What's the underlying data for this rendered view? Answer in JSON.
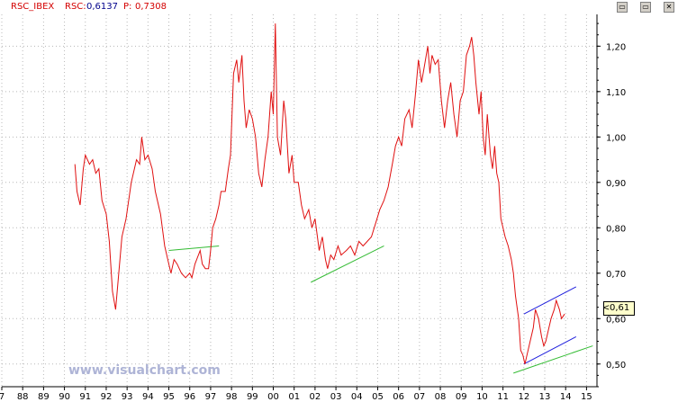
{
  "header": {
    "title": "RSC_IBEX",
    "rsc_label": "RSC:",
    "rsc_value": "0,6137",
    "p_label": "P:",
    "p_value": "0,7308",
    "colors": {
      "title": "#d40000",
      "value": "#00008b"
    }
  },
  "window_buttons": {
    "restore": "▭",
    "maximize": "▭",
    "close": "✕"
  },
  "current_value": {
    "marker": "<",
    "text": "0,61"
  },
  "watermark": "www.visualchart.com",
  "chart_data": {
    "type": "line",
    "title": "RSC_IBEX",
    "xlabel": "",
    "ylabel": "",
    "x_tick_labels": [
      "7",
      "88",
      "89",
      "90",
      "91",
      "92",
      "93",
      "94",
      "95",
      "96",
      "97",
      "98",
      "99",
      "00",
      "01",
      "02",
      "03",
      "04",
      "05",
      "06",
      "07",
      "08",
      "09",
      "10",
      "11",
      "12",
      "13",
      "14",
      "15"
    ],
    "x_tick_years": [
      1987,
      1988,
      1989,
      1990,
      1991,
      1992,
      1993,
      1994,
      1995,
      1996,
      1997,
      1998,
      1999,
      2000,
      2001,
      2002,
      2003,
      2004,
      2005,
      2006,
      2007,
      2008,
      2009,
      2010,
      2011,
      2012,
      2013,
      2014,
      2015
    ],
    "y_ticks": [
      0.5,
      0.6,
      0.7,
      0.8,
      0.9,
      1.0,
      1.1,
      1.2
    ],
    "y_tick_labels": [
      "0,50",
      "0,60",
      "0,70",
      "0,80",
      "0,90",
      "1,00",
      "1,10",
      "1,20"
    ],
    "xlim": [
      1987,
      2015.5
    ],
    "ylim": [
      0.45,
      1.27
    ],
    "grid": true,
    "series": [
      {
        "color": "#e01010",
        "points": [
          [
            1990.5,
            0.94
          ],
          [
            1990.6,
            0.88
          ],
          [
            1990.75,
            0.85
          ],
          [
            1990.9,
            0.93
          ],
          [
            1991.0,
            0.96
          ],
          [
            1991.2,
            0.94
          ],
          [
            1991.35,
            0.95
          ],
          [
            1991.5,
            0.92
          ],
          [
            1991.65,
            0.93
          ],
          [
            1991.8,
            0.86
          ],
          [
            1992.0,
            0.83
          ],
          [
            1992.15,
            0.77
          ],
          [
            1992.3,
            0.66
          ],
          [
            1992.45,
            0.62
          ],
          [
            1992.6,
            0.7
          ],
          [
            1992.75,
            0.78
          ],
          [
            1992.95,
            0.82
          ],
          [
            1993.2,
            0.9
          ],
          [
            1993.45,
            0.95
          ],
          [
            1993.6,
            0.94
          ],
          [
            1993.7,
            1.0
          ],
          [
            1993.85,
            0.95
          ],
          [
            1994.0,
            0.96
          ],
          [
            1994.2,
            0.93
          ],
          [
            1994.35,
            0.88
          ],
          [
            1994.6,
            0.83
          ],
          [
            1994.8,
            0.76
          ],
          [
            1995.0,
            0.72
          ],
          [
            1995.1,
            0.7
          ],
          [
            1995.25,
            0.73
          ],
          [
            1995.4,
            0.72
          ],
          [
            1995.6,
            0.7
          ],
          [
            1995.8,
            0.69
          ],
          [
            1996.0,
            0.7
          ],
          [
            1996.1,
            0.69
          ],
          [
            1996.25,
            0.72
          ],
          [
            1996.5,
            0.75
          ],
          [
            1996.6,
            0.72
          ],
          [
            1996.75,
            0.71
          ],
          [
            1996.9,
            0.71
          ],
          [
            1997.0,
            0.75
          ],
          [
            1997.1,
            0.8
          ],
          [
            1997.25,
            0.82
          ],
          [
            1997.4,
            0.85
          ],
          [
            1997.5,
            0.88
          ],
          [
            1997.7,
            0.88
          ],
          [
            1997.85,
            0.93
          ],
          [
            1997.95,
            0.96
          ],
          [
            1998.1,
            1.14
          ],
          [
            1998.25,
            1.17
          ],
          [
            1998.35,
            1.12
          ],
          [
            1998.5,
            1.18
          ],
          [
            1998.6,
            1.08
          ],
          [
            1998.7,
            1.02
          ],
          [
            1998.85,
            1.06
          ],
          [
            1999.0,
            1.04
          ],
          [
            1999.15,
            1.0
          ],
          [
            1999.3,
            0.92
          ],
          [
            1999.45,
            0.89
          ],
          [
            1999.6,
            0.95
          ],
          [
            1999.75,
            1.0
          ],
          [
            1999.9,
            1.1
          ],
          [
            2000.0,
            1.05
          ],
          [
            2000.1,
            1.25
          ],
          [
            2000.2,
            1.0
          ],
          [
            2000.35,
            0.96
          ],
          [
            2000.5,
            1.08
          ],
          [
            2000.6,
            1.04
          ],
          [
            2000.75,
            0.92
          ],
          [
            2000.9,
            0.96
          ],
          [
            2001.0,
            0.9
          ],
          [
            2001.2,
            0.9
          ],
          [
            2001.35,
            0.85
          ],
          [
            2001.5,
            0.82
          ],
          [
            2001.7,
            0.84
          ],
          [
            2001.85,
            0.8
          ],
          [
            2002.0,
            0.82
          ],
          [
            2002.2,
            0.75
          ],
          [
            2002.35,
            0.78
          ],
          [
            2002.5,
            0.73
          ],
          [
            2002.6,
            0.71
          ],
          [
            2002.75,
            0.74
          ],
          [
            2002.9,
            0.73
          ],
          [
            2003.1,
            0.76
          ],
          [
            2003.25,
            0.74
          ],
          [
            2003.5,
            0.75
          ],
          [
            2003.7,
            0.76
          ],
          [
            2003.9,
            0.74
          ],
          [
            2004.1,
            0.77
          ],
          [
            2004.3,
            0.76
          ],
          [
            2004.5,
            0.77
          ],
          [
            2004.7,
            0.78
          ],
          [
            2004.9,
            0.81
          ],
          [
            2005.1,
            0.84
          ],
          [
            2005.3,
            0.86
          ],
          [
            2005.5,
            0.89
          ],
          [
            2005.7,
            0.94
          ],
          [
            2005.85,
            0.98
          ],
          [
            2006.0,
            1.0
          ],
          [
            2006.15,
            0.98
          ],
          [
            2006.3,
            1.04
          ],
          [
            2006.5,
            1.06
          ],
          [
            2006.65,
            1.02
          ],
          [
            2006.8,
            1.09
          ],
          [
            2006.95,
            1.17
          ],
          [
            2007.1,
            1.12
          ],
          [
            2007.25,
            1.16
          ],
          [
            2007.4,
            1.2
          ],
          [
            2007.5,
            1.14
          ],
          [
            2007.6,
            1.18
          ],
          [
            2007.75,
            1.16
          ],
          [
            2007.9,
            1.17
          ],
          [
            2008.05,
            1.08
          ],
          [
            2008.2,
            1.02
          ],
          [
            2008.35,
            1.08
          ],
          [
            2008.5,
            1.12
          ],
          [
            2008.65,
            1.05
          ],
          [
            2008.8,
            1.0
          ],
          [
            2008.95,
            1.08
          ],
          [
            2009.1,
            1.1
          ],
          [
            2009.25,
            1.18
          ],
          [
            2009.4,
            1.2
          ],
          [
            2009.5,
            1.22
          ],
          [
            2009.6,
            1.18
          ],
          [
            2009.7,
            1.12
          ],
          [
            2009.85,
            1.05
          ],
          [
            2009.95,
            1.1
          ],
          [
            2010.05,
            1.0
          ],
          [
            2010.15,
            0.96
          ],
          [
            2010.25,
            1.05
          ],
          [
            2010.4,
            0.96
          ],
          [
            2010.5,
            0.93
          ],
          [
            2010.6,
            0.98
          ],
          [
            2010.7,
            0.92
          ],
          [
            2010.8,
            0.9
          ],
          [
            2010.9,
            0.82
          ],
          [
            2011.1,
            0.78
          ],
          [
            2011.25,
            0.76
          ],
          [
            2011.4,
            0.73
          ],
          [
            2011.5,
            0.7
          ],
          [
            2011.6,
            0.65
          ],
          [
            2011.75,
            0.6
          ],
          [
            2011.85,
            0.53
          ],
          [
            2011.95,
            0.52
          ],
          [
            2012.05,
            0.5
          ],
          [
            2012.15,
            0.52
          ],
          [
            2012.3,
            0.55
          ],
          [
            2012.45,
            0.58
          ],
          [
            2012.55,
            0.62
          ],
          [
            2012.7,
            0.6
          ],
          [
            2012.85,
            0.56
          ],
          [
            2012.95,
            0.54
          ],
          [
            2013.05,
            0.55
          ],
          [
            2013.15,
            0.57
          ],
          [
            2013.3,
            0.6
          ],
          [
            2013.45,
            0.62
          ],
          [
            2013.55,
            0.64
          ],
          [
            2013.7,
            0.62
          ],
          [
            2013.8,
            0.6
          ],
          [
            2013.95,
            0.61
          ]
        ]
      }
    ],
    "trendlines": [
      {
        "color": "#33bb33",
        "points": [
          [
            1995.0,
            0.75
          ],
          [
            1997.4,
            0.76
          ]
        ]
      },
      {
        "color": "#33bb33",
        "points": [
          [
            2001.8,
            0.68
          ],
          [
            2005.3,
            0.76
          ]
        ]
      },
      {
        "color": "#33bb33",
        "points": [
          [
            2011.5,
            0.48
          ],
          [
            2015.3,
            0.54
          ]
        ]
      },
      {
        "color": "#2020dd",
        "points": [
          [
            2012.0,
            0.61
          ],
          [
            2014.5,
            0.67
          ]
        ]
      },
      {
        "color": "#2020dd",
        "points": [
          [
            2012.0,
            0.5
          ],
          [
            2014.5,
            0.56
          ]
        ]
      }
    ]
  }
}
